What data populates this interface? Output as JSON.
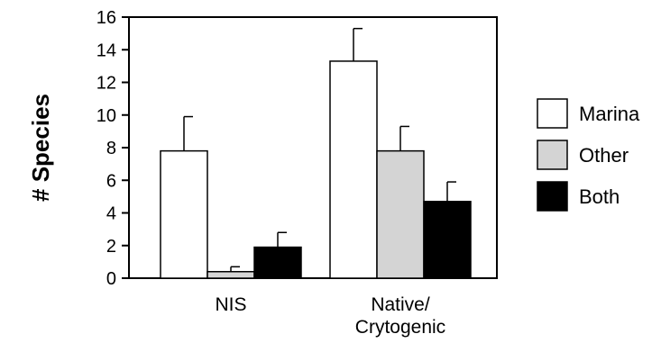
{
  "chart_data": {
    "type": "bar",
    "title": "",
    "xlabel": "",
    "ylabel": "# Species",
    "ylim": [
      0,
      16
    ],
    "yticks": [
      "0",
      "2",
      "4",
      "6",
      "8",
      "10",
      "12",
      "14",
      "16"
    ],
    "categories": [
      [
        "NIS"
      ],
      [
        "Native/",
        "Crytogenic"
      ]
    ],
    "series": [
      {
        "name": "Marina",
        "color": "#ffffff",
        "values": [
          7.8,
          13.3
        ],
        "errors": [
          2.1,
          2.0
        ]
      },
      {
        "name": "Other",
        "color": "#d4d4d4",
        "values": [
          0.4,
          7.8
        ],
        "errors": [
          0.3,
          1.5
        ]
      },
      {
        "name": "Both",
        "color": "#000000",
        "values": [
          1.9,
          4.7
        ],
        "errors": [
          0.9,
          1.2
        ]
      }
    ],
    "legend_position": "right",
    "grid": false
  }
}
